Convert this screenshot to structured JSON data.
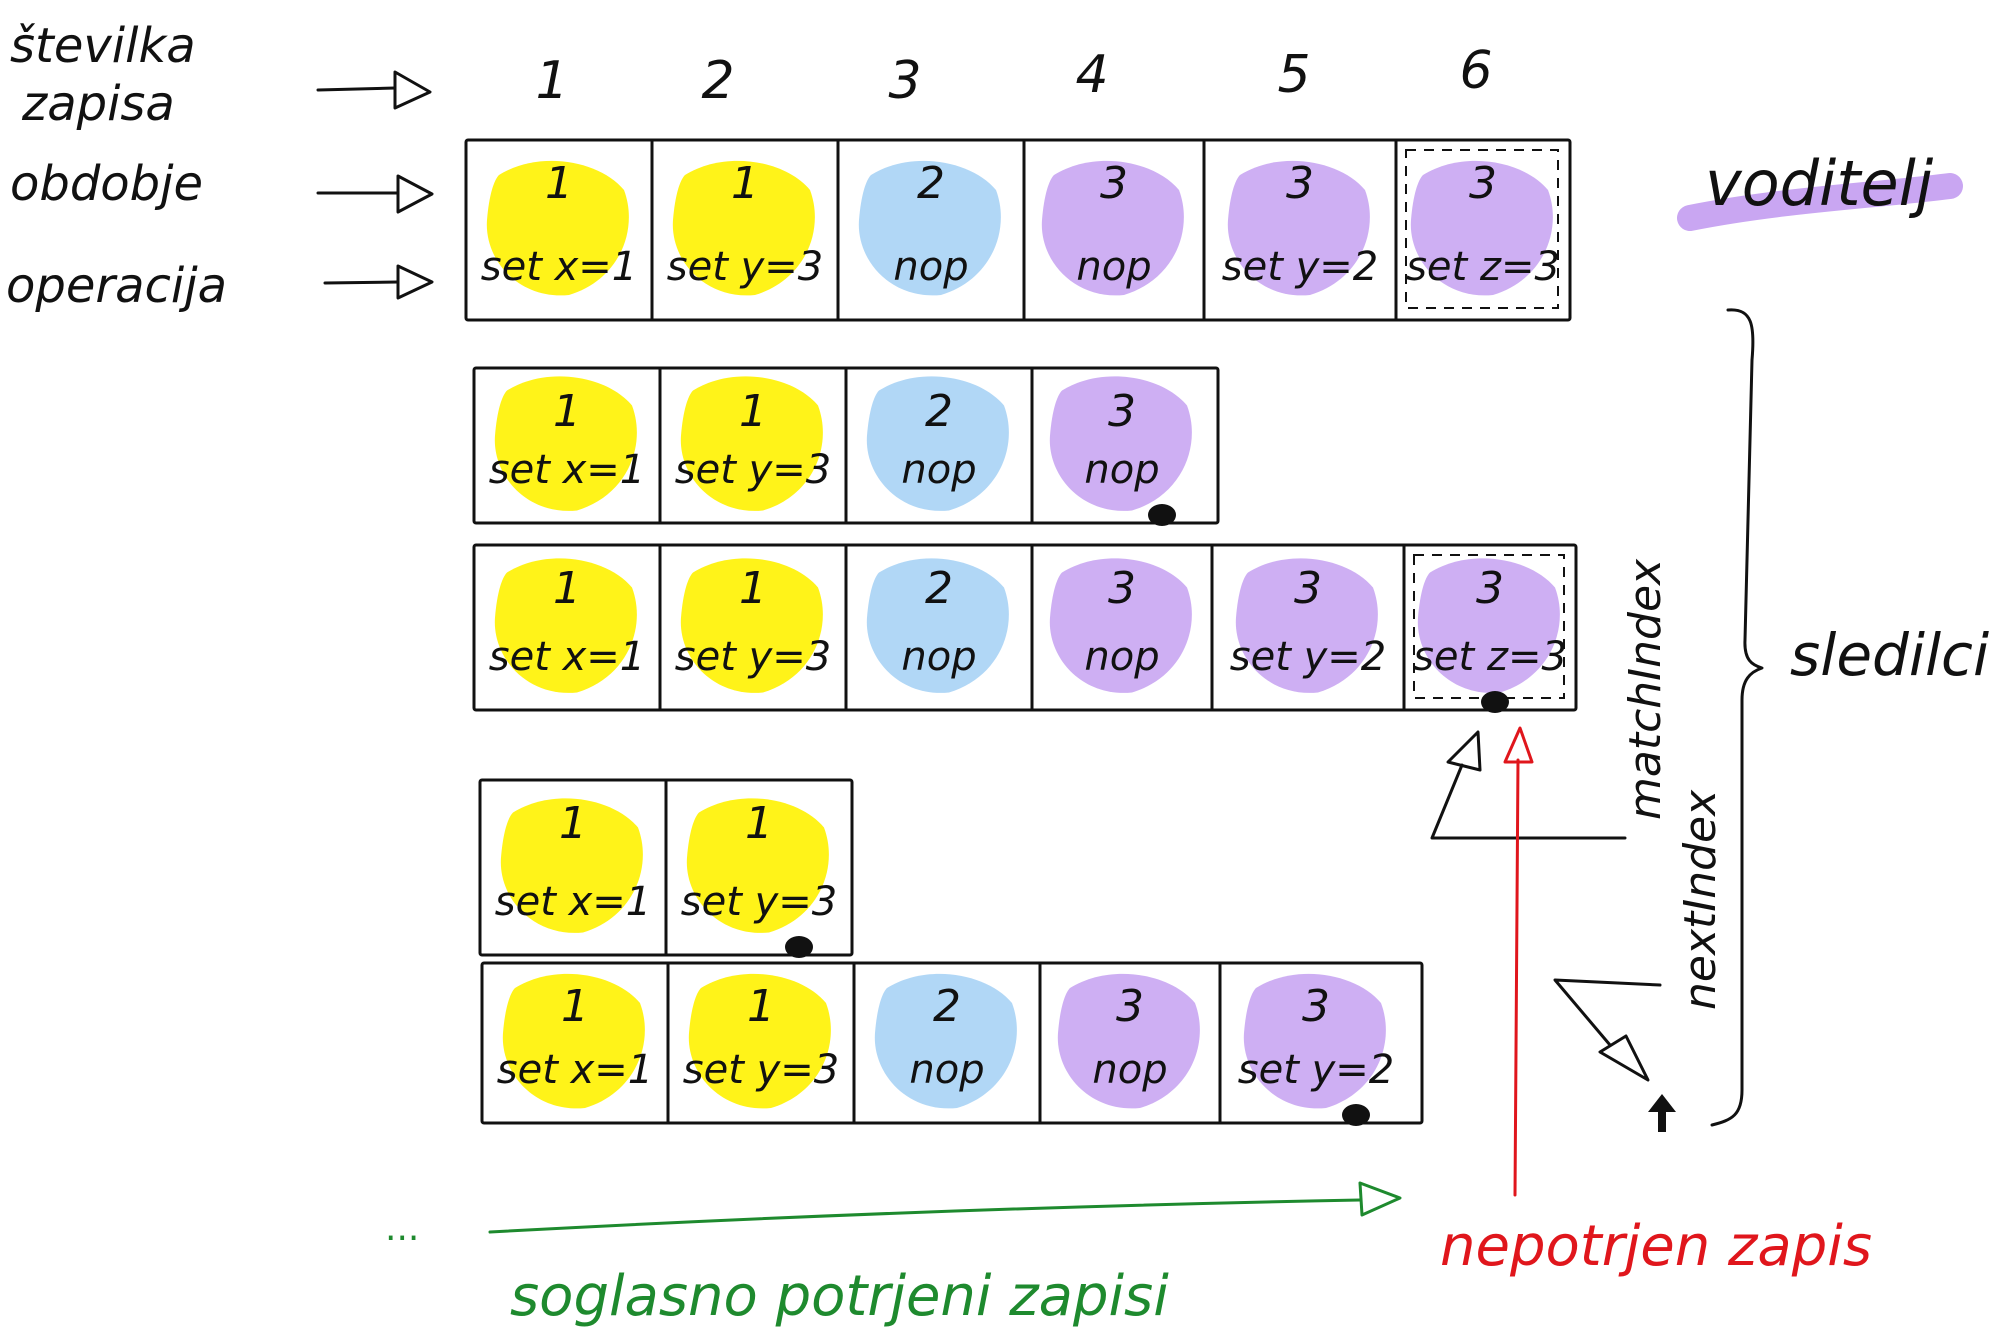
{
  "colors": {
    "period_1": "#fff200",
    "period_2": "#a9d3f5",
    "period_3": "#c9a6f2",
    "ink": "#111111",
    "green": "#1e8a2e",
    "red": "#e0161c",
    "leader_mark": "#c9a6f2"
  },
  "row_labels": {
    "index": "številka zapisa",
    "index_line1": "številka",
    "index_line2": "zapisa",
    "period": "obdobje",
    "operation": "operacija"
  },
  "column_indices": [
    "1",
    "2",
    "3",
    "4",
    "5",
    "6"
  ],
  "leader_label": "voditelj",
  "followers_label": "sledilci",
  "match_index_label": "matchIndex",
  "next_index_label": "nextIndex",
  "committed_label": "soglasno potrjeni zapisi",
  "committed_prefix": "...",
  "uncommitted_label": "nepotrjen zapis",
  "logs": [
    {
      "role": "leader",
      "entries": [
        {
          "period": "1",
          "op": "set x=1"
        },
        {
          "period": "1",
          "op": "set y=3"
        },
        {
          "period": "2",
          "op": "nop"
        },
        {
          "period": "3",
          "op": "nop"
        },
        {
          "period": "3",
          "op": "set y=2"
        },
        {
          "period": "3",
          "op": "set z=3"
        }
      ]
    },
    {
      "role": "follower",
      "entries": [
        {
          "period": "1",
          "op": "set x=1"
        },
        {
          "period": "1",
          "op": "set y=3"
        },
        {
          "period": "2",
          "op": "nop"
        },
        {
          "period": "3",
          "op": "nop"
        }
      ]
    },
    {
      "role": "follower",
      "entries": [
        {
          "period": "1",
          "op": "set x=1"
        },
        {
          "period": "1",
          "op": "set y=3"
        },
        {
          "period": "2",
          "op": "nop"
        },
        {
          "period": "3",
          "op": "nop"
        },
        {
          "period": "3",
          "op": "set y=2"
        },
        {
          "period": "3",
          "op": "set z=3"
        }
      ]
    },
    {
      "role": "follower",
      "entries": [
        {
          "period": "1",
          "op": "set x=1"
        },
        {
          "period": "1",
          "op": "set y=3"
        }
      ]
    },
    {
      "role": "follower",
      "entries": [
        {
          "period": "1",
          "op": "set x=1"
        },
        {
          "period": "1",
          "op": "set y=3"
        },
        {
          "period": "2",
          "op": "nop"
        },
        {
          "period": "3",
          "op": "nop"
        },
        {
          "period": "3",
          "op": "set y=2"
        }
      ]
    }
  ]
}
